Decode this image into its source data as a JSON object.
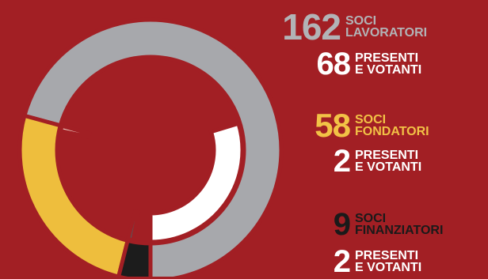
{
  "colors": {
    "background": "#A21F24",
    "lavoratori": "#A7A8AC",
    "fondatori": "#EEBE3D",
    "finanziatori": "#1C1C1C",
    "lavoratori_presenti": "#FFFFFF",
    "fondatori_presenti": "#EDC9C0",
    "finanziatori_presenti": "#575759",
    "lavoratori_text": "#B2B3B6",
    "fondatori_text": "#F2C246",
    "finanziatori_text": "#1A1A1A",
    "presenti_text": "#FFFFFF"
  },
  "groups": [
    {
      "key": "lavoratori",
      "number": "162",
      "label_line1": "SOCI",
      "label_line2": "LAVORATORI",
      "presenti_number": "68",
      "presenti_line1": "PRESENTI",
      "presenti_line2": "E VOTANTI"
    },
    {
      "key": "fondatori",
      "number": "58",
      "label_line1": "SOCI",
      "label_line2": "FONDATORI",
      "presenti_number": "2",
      "presenti_line1": "PRESENTI",
      "presenti_line2": "E VOTANTI"
    },
    {
      "key": "finanziatori",
      "number": "9",
      "label_line1": "SOCI",
      "label_line2": "FINANZIATORI",
      "presenti_number": "2",
      "presenti_line1": "PRESENTI",
      "presenti_line2": "E VOTANTI"
    }
  ],
  "chart_data": {
    "type": "pie",
    "outer_ring": {
      "series": [
        {
          "name": "SOCI LAVORATORI",
          "value": 162
        },
        {
          "name": "SOCI FONDATORI",
          "value": 58
        },
        {
          "name": "SOCI FINANZIATORI",
          "value": 9
        }
      ]
    },
    "inner_ring": {
      "series": [
        {
          "name": "PRESENTI E VOTANTI (SOCI LAVORATORI)",
          "value": 68
        },
        {
          "name": "PRESENTI E VOTANTI (SOCI FONDATORI)",
          "value": 2
        },
        {
          "name": "PRESENTI E VOTANTI (SOCI FINANZIATORI)",
          "value": 2
        }
      ]
    }
  }
}
